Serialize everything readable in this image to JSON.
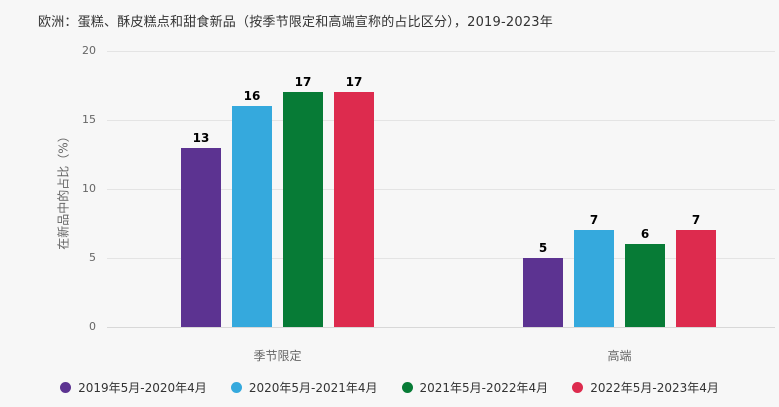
{
  "colors": {
    "background": "#f7f7f7",
    "grid": "#e4e4e4",
    "axis_line": "#d8d8d8",
    "title_text": "#333333",
    "tick_text": "#666666",
    "bar_value_text": "#000000",
    "legend_text": "#333333"
  },
  "chart_data": {
    "type": "bar",
    "title": "欧洲：蛋糕、酥皮糕点和甜食新品（按季节限定和高端宣称的占比区分），2019-2023年",
    "xlabel": "",
    "ylabel": "在新品中的占比（%）",
    "categories": [
      "季节限定",
      "高端"
    ],
    "series": [
      {
        "name": "2019年5月-2020年4月",
        "color": "#5c3391",
        "values": [
          13,
          5
        ]
      },
      {
        "name": "2020年5月-2021年4月",
        "color": "#35a9dd",
        "values": [
          16,
          7
        ]
      },
      {
        "name": "2021年5月-2022年4月",
        "color": "#077b36",
        "values": [
          17,
          6
        ]
      },
      {
        "name": "2022年5月-2023年4月",
        "color": "#dd2b4e",
        "values": [
          17,
          7
        ]
      }
    ],
    "ylim": [
      0,
      20
    ],
    "yticks": [
      0,
      5,
      10,
      15,
      20
    ],
    "grid": "horizontal",
    "legend_position": "bottom",
    "bar_value_labels": true
  }
}
